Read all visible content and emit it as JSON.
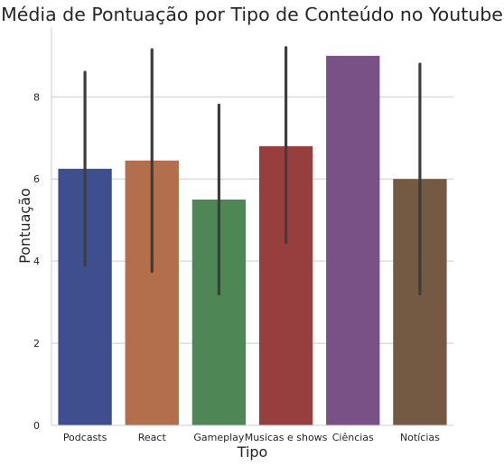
{
  "chart_data": {
    "type": "bar",
    "title": "Média de Pontuação por Tipo de Conteúdo no Youtube",
    "xlabel": "Tipo",
    "ylabel": "Pontuação",
    "categories": [
      "Podcasts",
      "React",
      "Gameplay",
      "Musicas e shows",
      "Ciências",
      "Notícias"
    ],
    "values": [
      6.25,
      6.45,
      5.5,
      6.8,
      9.0,
      6.0
    ],
    "error_low": [
      3.9,
      3.75,
      3.2,
      4.45,
      9.0,
      3.2
    ],
    "error_high": [
      8.6,
      9.15,
      7.8,
      9.2,
      9.0,
      8.8
    ],
    "colors": [
      "#3a4a8d",
      "#b16b47",
      "#4a8453",
      "#953a3a",
      "#764e84",
      "#71563f"
    ],
    "ylim": [
      0,
      9.7
    ],
    "yticks": [
      0,
      2,
      4,
      6,
      8
    ],
    "grid": "y",
    "error_color": "#3d3d3d"
  }
}
